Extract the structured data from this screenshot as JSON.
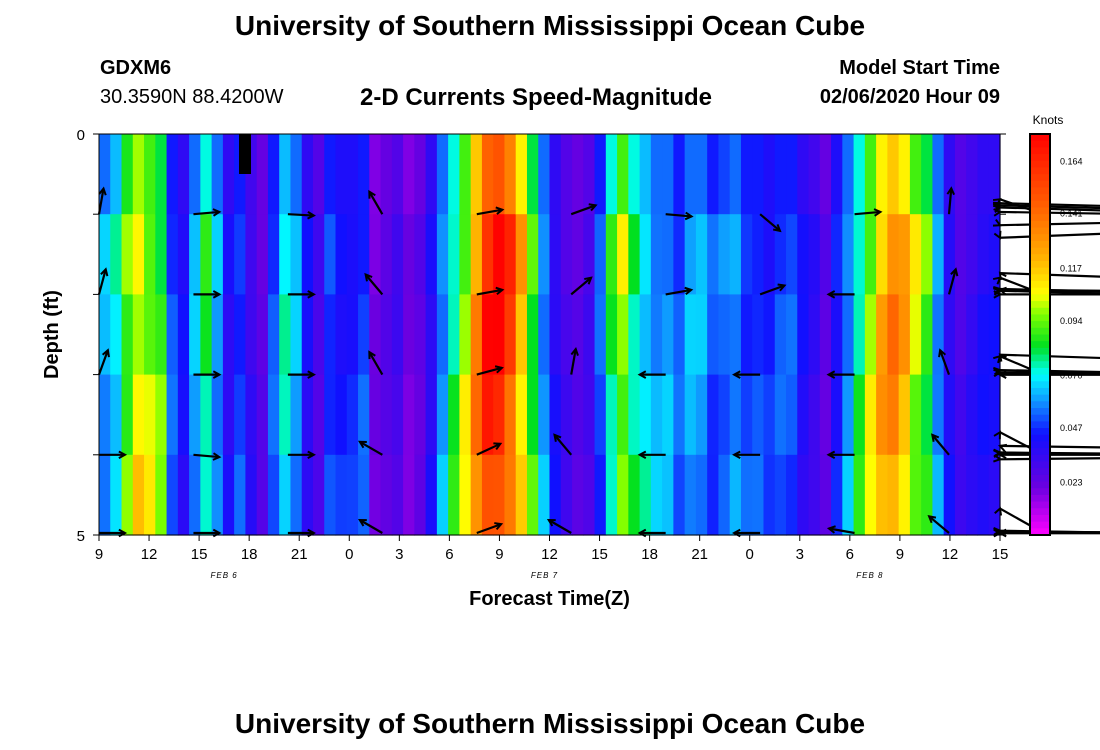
{
  "header": {
    "title": "University of Southern Mississippi Ocean Cube",
    "footer_title": "University of Southern Mississippi Ocean Cube",
    "station": "GDXM6",
    "coords": "30.3590N 88.4200W",
    "subtitle": "2-D Currents Speed-Magnitude",
    "start_label": "Model Start Time",
    "start_value": "02/06/2020 Hour 09"
  },
  "chart_data": {
    "type": "heatmap",
    "title": "2-D Currents Speed-Magnitude",
    "xlabel": "Forecast Time(Z)",
    "ylabel": "Depth (ft)",
    "x_ticks": [
      "9",
      "12",
      "15",
      "18",
      "21",
      "0",
      "3",
      "6",
      "9",
      "12",
      "15",
      "18",
      "21",
      "0",
      "3",
      "6",
      "9",
      "12",
      "15"
    ],
    "y_ticks": [
      "0",
      "5"
    ],
    "y_range": [
      0,
      5
    ],
    "date_labels": [
      {
        "text": "FEB 6",
        "tick_index": 2.5
      },
      {
        "text": "FEB 7",
        "tick_index": 8.9
      },
      {
        "text": "FEB 8",
        "tick_index": 15.4
      }
    ],
    "colorbar": {
      "label": "Knots",
      "ticks": [
        "0.164",
        "0.141",
        "0.117",
        "0.094",
        "0.070",
        "0.047",
        "0.023"
      ],
      "tick_values": [
        0.164,
        0.141,
        0.117,
        0.094,
        0.07,
        0.047,
        0.023
      ],
      "range": [
        0,
        0.176
      ]
    },
    "speed_profile": {
      "description": "Approximate column-mean speed (knots) per hourly column",
      "values": [
        0.06,
        0.07,
        0.095,
        0.11,
        0.1,
        0.09,
        0.05,
        0.04,
        0.06,
        0.08,
        0.06,
        0.04,
        0.05,
        0.035,
        0.025,
        0.05,
        0.07,
        0.06,
        0.04,
        0.03,
        0.05,
        0.045,
        0.045,
        0.05,
        0.02,
        0.025,
        0.03,
        0.02,
        0.025,
        0.04,
        0.06,
        0.08,
        0.1,
        0.13,
        0.16,
        0.165,
        0.15,
        0.12,
        0.09,
        0.06,
        0.04,
        0.03,
        0.025,
        0.03,
        0.05,
        0.08,
        0.1,
        0.08,
        0.07,
        0.06,
        0.06,
        0.05,
        0.06,
        0.06,
        0.05,
        0.055,
        0.06,
        0.05,
        0.05,
        0.045,
        0.05,
        0.05,
        0.04,
        0.035,
        0.025,
        0.045,
        0.06,
        0.08,
        0.1,
        0.12,
        0.13,
        0.12,
        0.1,
        0.09,
        0.06,
        0.04,
        0.03,
        0.035,
        0.04,
        0.04
      ]
    },
    "vector_rows_depth_ft": [
      1,
      2,
      3,
      4,
      5
    ],
    "vector_angles_deg": {
      "description": "Approximate current direction per vector (0=east, 90=north)",
      "rows": [
        [
          80,
          5,
          -3,
          120,
          10,
          20,
          -5,
          -40,
          5,
          85,
          35,
          5,
          15,
          20,
          25,
          -25,
          -65
        ],
        [
          75,
          0,
          0,
          130,
          10,
          40,
          10,
          20,
          180,
          75,
          40,
          8,
          12,
          10,
          0,
          170,
          125
        ],
        [
          70,
          0,
          0,
          120,
          15,
          80,
          180,
          180,
          180,
          110,
          45,
          5,
          10,
          5,
          180,
          180,
          130
        ],
        [
          0,
          -5,
          0,
          150,
          25,
          130,
          180,
          180,
          180,
          130,
          60,
          5,
          5,
          3,
          -10,
          180,
          160
        ],
        [
          0,
          0,
          0,
          150,
          20,
          150,
          180,
          180,
          170,
          140,
          70,
          5,
          3,
          0,
          0,
          180,
          180
        ]
      ]
    }
  }
}
